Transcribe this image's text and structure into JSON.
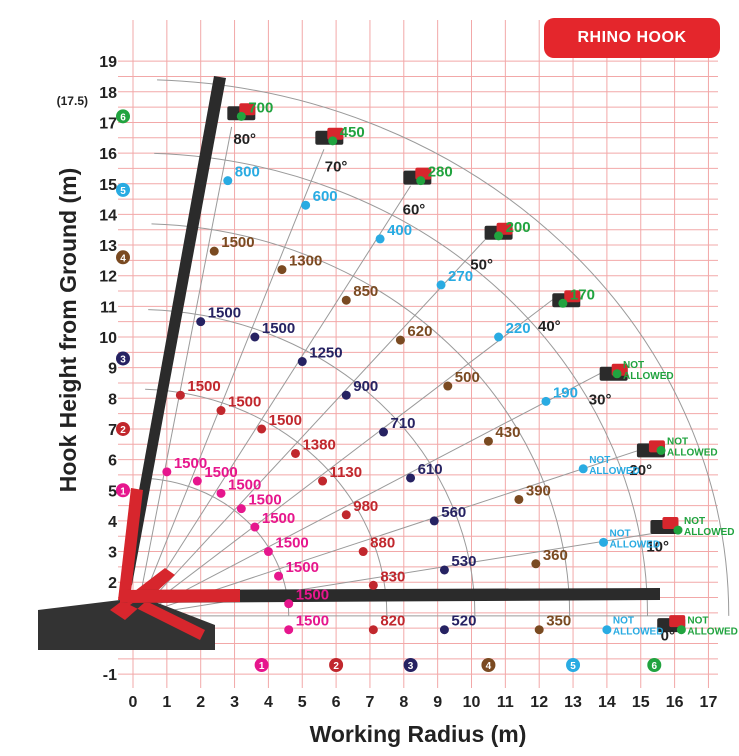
{
  "chart_data": {
    "type": "scatter",
    "xlabel": "Working Radius (m)",
    "ylabel": "Hook Height from Ground (m)",
    "xlim": [
      -0.5,
      17.5
    ],
    "ylim": [
      -1.5,
      19
    ],
    "x_ticks": [
      "0",
      "1",
      "2",
      "3",
      "4",
      "5",
      "6",
      "7",
      "8",
      "9",
      "10",
      "11",
      "12",
      "13",
      "14",
      "15",
      "16",
      "17"
    ],
    "y_ticks": [
      "19",
      "18",
      "17",
      "16",
      "15",
      "14",
      "13",
      "12",
      "11",
      "10",
      "9",
      "8",
      "7",
      "6",
      "5",
      "4",
      "3",
      "2",
      "1",
      "-1"
    ],
    "y_extra_label": "(17.5)",
    "grid": true,
    "series": [
      {
        "name": "1",
        "color": "#e6168d",
        "points": [
          {
            "x": 1.0,
            "y": 5.6,
            "label": "1500"
          },
          {
            "x": 1.9,
            "y": 5.3,
            "label": "1500"
          },
          {
            "x": 2.6,
            "y": 4.9,
            "label": "1500"
          },
          {
            "x": 3.2,
            "y": 4.4,
            "label": "1500"
          },
          {
            "x": 3.6,
            "y": 3.8,
            "label": "1500"
          },
          {
            "x": 4.0,
            "y": 3.0,
            "label": "1500"
          },
          {
            "x": 4.3,
            "y": 2.2,
            "label": "1500"
          },
          {
            "x": 4.6,
            "y": 1.3,
            "label": "1500"
          },
          {
            "x": 4.6,
            "y": 0.45,
            "label": "1500"
          }
        ]
      },
      {
        "name": "2",
        "color": "#c1272d",
        "points": [
          {
            "x": 1.4,
            "y": 8.1,
            "label": "1500"
          },
          {
            "x": 2.6,
            "y": 7.6,
            "label": "1500"
          },
          {
            "x": 3.8,
            "y": 7.0,
            "label": "1500"
          },
          {
            "x": 4.8,
            "y": 6.2,
            "label": "1380"
          },
          {
            "x": 5.6,
            "y": 5.3,
            "label": "1130"
          },
          {
            "x": 6.3,
            "y": 4.2,
            "label": "980"
          },
          {
            "x": 6.8,
            "y": 3.0,
            "label": "880"
          },
          {
            "x": 7.1,
            "y": 1.9,
            "label": "830"
          },
          {
            "x": 7.1,
            "y": 0.45,
            "label": "820"
          }
        ]
      },
      {
        "name": "3",
        "color": "#262262",
        "points": [
          {
            "x": 2.0,
            "y": 10.5,
            "label": "1500"
          },
          {
            "x": 3.6,
            "y": 10.0,
            "label": "1500"
          },
          {
            "x": 5.0,
            "y": 9.2,
            "label": "1250"
          },
          {
            "x": 6.3,
            "y": 8.1,
            "label": "900"
          },
          {
            "x": 7.4,
            "y": 6.9,
            "label": "710"
          },
          {
            "x": 8.2,
            "y": 5.4,
            "label": "610"
          },
          {
            "x": 8.9,
            "y": 4.0,
            "label": "560"
          },
          {
            "x": 9.2,
            "y": 2.4,
            "label": "530"
          },
          {
            "x": 9.2,
            "y": 0.45,
            "label": "520"
          }
        ]
      },
      {
        "name": "4",
        "color": "#7a4a21",
        "points": [
          {
            "x": 2.4,
            "y": 12.8,
            "label": "1500"
          },
          {
            "x": 4.4,
            "y": 12.2,
            "label": "1300"
          },
          {
            "x": 6.3,
            "y": 11.2,
            "label": "850"
          },
          {
            "x": 7.9,
            "y": 9.9,
            "label": "620"
          },
          {
            "x": 9.3,
            "y": 8.4,
            "label": "500"
          },
          {
            "x": 10.5,
            "y": 6.6,
            "label": "430"
          },
          {
            "x": 11.4,
            "y": 4.7,
            "label": "390"
          },
          {
            "x": 11.9,
            "y": 2.6,
            "label": "360"
          },
          {
            "x": 12.0,
            "y": 0.45,
            "label": "350"
          }
        ]
      },
      {
        "name": "5",
        "color": "#29abe2",
        "points": [
          {
            "x": 2.8,
            "y": 15.1,
            "label": "800"
          },
          {
            "x": 5.1,
            "y": 14.3,
            "label": "600"
          },
          {
            "x": 7.3,
            "y": 13.2,
            "label": "400"
          },
          {
            "x": 9.1,
            "y": 11.7,
            "label": "270"
          },
          {
            "x": 10.8,
            "y": 10.0,
            "label": "220"
          },
          {
            "x": 12.2,
            "y": 7.9,
            "label": "190"
          },
          {
            "x": 13.3,
            "y": 5.7,
            "label": "NOT ALLOWED"
          },
          {
            "x": 13.9,
            "y": 3.3,
            "label": "NOT ALLOWED"
          },
          {
            "x": 14.0,
            "y": 0.45,
            "label": "NOT ALLOWED"
          }
        ]
      },
      {
        "name": "6",
        "color": "#21a33f",
        "points": [
          {
            "x": 3.2,
            "y": 17.2,
            "label": "700"
          },
          {
            "x": 5.9,
            "y": 16.4,
            "label": "450"
          },
          {
            "x": 8.5,
            "y": 15.1,
            "label": "280"
          },
          {
            "x": 10.8,
            "y": 13.3,
            "label": "200"
          },
          {
            "x": 12.7,
            "y": 11.1,
            "label": "170"
          },
          {
            "x": 14.3,
            "y": 8.8,
            "label": "NOT ALLOWED"
          },
          {
            "x": 15.6,
            "y": 6.3,
            "label": "NOT ALLOWED"
          },
          {
            "x": 16.1,
            "y": 3.7,
            "label": "NOT ALLOWED"
          },
          {
            "x": 16.2,
            "y": 0.45,
            "label": "NOT ALLOWED"
          }
        ]
      }
    ],
    "boom_angles": [
      {
        "label": "80°",
        "x": 3.3,
        "y": 16.3
      },
      {
        "label": "70°",
        "x": 6.0,
        "y": 15.4
      },
      {
        "label": "60°",
        "x": 8.3,
        "y": 14.0
      },
      {
        "label": "50°",
        "x": 10.3,
        "y": 12.2
      },
      {
        "label": "40°",
        "x": 12.3,
        "y": 10.2
      },
      {
        "label": "30°",
        "x": 13.8,
        "y": 7.8
      },
      {
        "label": "20°",
        "x": 15.0,
        "y": 5.5
      },
      {
        "label": "10°",
        "x": 15.5,
        "y": 3.0
      },
      {
        "label": "0°",
        "x": 15.8,
        "y": 0.1
      }
    ],
    "legend_markers": [
      "1",
      "2",
      "3",
      "4",
      "5",
      "6"
    ]
  },
  "badge": {
    "label": "RHINO HOOK"
  }
}
